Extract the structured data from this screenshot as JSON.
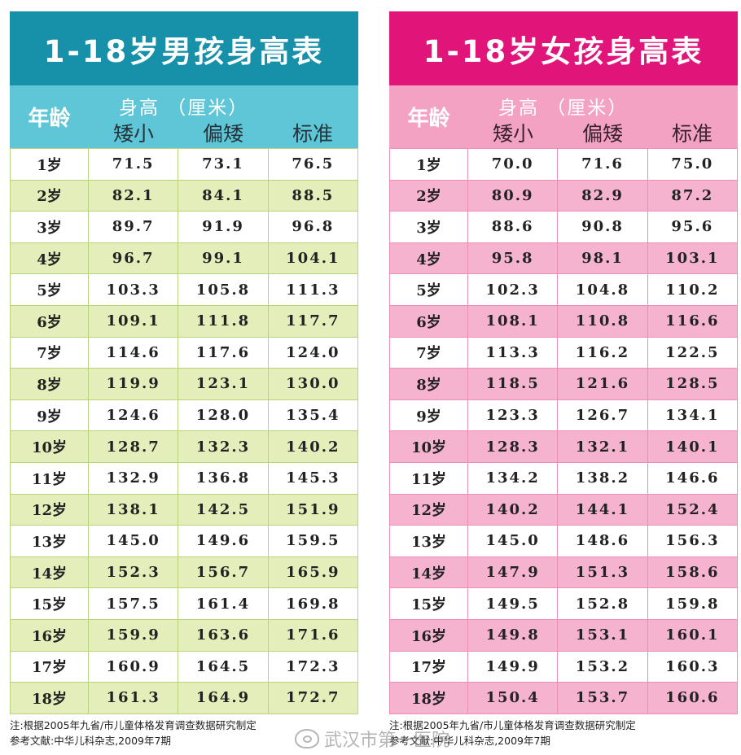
{
  "boys": {
    "title": "1-18岁男孩身高表",
    "age_header": "年龄",
    "height_header": "身高 （厘米）",
    "columns": [
      "矮小",
      "偏矮",
      "标准"
    ],
    "rows": [
      {
        "age": "1岁",
        "v": [
          "71.5",
          "73.1",
          "76.5"
        ]
      },
      {
        "age": "2岁",
        "v": [
          "82.1",
          "84.1",
          "88.5"
        ]
      },
      {
        "age": "3岁",
        "v": [
          "89.7",
          "91.9",
          "96.8"
        ]
      },
      {
        "age": "4岁",
        "v": [
          "96.7",
          "99.1",
          "104.1"
        ]
      },
      {
        "age": "5岁",
        "v": [
          "103.3",
          "105.8",
          "111.3"
        ]
      },
      {
        "age": "6岁",
        "v": [
          "109.1",
          "111.8",
          "117.7"
        ]
      },
      {
        "age": "7岁",
        "v": [
          "114.6",
          "117.6",
          "124.0"
        ]
      },
      {
        "age": "8岁",
        "v": [
          "119.9",
          "123.1",
          "130.0"
        ]
      },
      {
        "age": "9岁",
        "v": [
          "124.6",
          "128.0",
          "135.4"
        ]
      },
      {
        "age": "10岁",
        "v": [
          "128.7",
          "132.3",
          "140.2"
        ]
      },
      {
        "age": "11岁",
        "v": [
          "132.9",
          "136.8",
          "145.3"
        ]
      },
      {
        "age": "12岁",
        "v": [
          "138.1",
          "142.5",
          "151.9"
        ]
      },
      {
        "age": "13岁",
        "v": [
          "145.0",
          "149.6",
          "159.5"
        ]
      },
      {
        "age": "14岁",
        "v": [
          "152.3",
          "156.7",
          "165.9"
        ]
      },
      {
        "age": "15岁",
        "v": [
          "157.5",
          "161.4",
          "169.8"
        ]
      },
      {
        "age": "16岁",
        "v": [
          "159.9",
          "163.6",
          "171.6"
        ]
      },
      {
        "age": "17岁",
        "v": [
          "160.9",
          "164.5",
          "172.3"
        ]
      },
      {
        "age": "18岁",
        "v": [
          "161.3",
          "164.9",
          "172.7"
        ]
      }
    ],
    "note1": "注:根据2005年九省/市儿童体格发育调查数据研究制定",
    "note2": "参考文献:中华儿科杂志,2009年7期"
  },
  "girls": {
    "title": "1-18岁女孩身高表",
    "age_header": "年龄",
    "height_header": "身高 （厘米）",
    "columns": [
      "矮小",
      "偏矮",
      "标准"
    ],
    "rows": [
      {
        "age": "1岁",
        "v": [
          "70.0",
          "71.6",
          "75.0"
        ]
      },
      {
        "age": "2岁",
        "v": [
          "80.9",
          "82.9",
          "87.2"
        ]
      },
      {
        "age": "3岁",
        "v": [
          "88.6",
          "90.8",
          "95.6"
        ]
      },
      {
        "age": "4岁",
        "v": [
          "95.8",
          "98.1",
          "103.1"
        ]
      },
      {
        "age": "5岁",
        "v": [
          "102.3",
          "104.8",
          "110.2"
        ]
      },
      {
        "age": "6岁",
        "v": [
          "108.1",
          "110.8",
          "116.6"
        ]
      },
      {
        "age": "7岁",
        "v": [
          "113.3",
          "116.2",
          "122.5"
        ]
      },
      {
        "age": "8岁",
        "v": [
          "118.5",
          "121.6",
          "128.5"
        ]
      },
      {
        "age": "9岁",
        "v": [
          "123.3",
          "126.7",
          "134.1"
        ]
      },
      {
        "age": "10岁",
        "v": [
          "128.3",
          "132.1",
          "140.1"
        ]
      },
      {
        "age": "11岁",
        "v": [
          "134.2",
          "138.2",
          "146.6"
        ]
      },
      {
        "age": "12岁",
        "v": [
          "140.2",
          "144.1",
          "152.4"
        ]
      },
      {
        "age": "13岁",
        "v": [
          "145.0",
          "148.6",
          "156.3"
        ]
      },
      {
        "age": "14岁",
        "v": [
          "147.9",
          "151.3",
          "158.6"
        ]
      },
      {
        "age": "15岁",
        "v": [
          "149.5",
          "152.8",
          "159.8"
        ]
      },
      {
        "age": "16岁",
        "v": [
          "149.8",
          "153.1",
          "160.1"
        ]
      },
      {
        "age": "17岁",
        "v": [
          "149.9",
          "153.2",
          "160.3"
        ]
      },
      {
        "age": "18岁",
        "v": [
          "150.4",
          "153.7",
          "160.6"
        ]
      }
    ],
    "note1": "注:根据2005年九省/市儿童体格发育调查数据研究制定",
    "note2": "参考文献:中华儿科杂志,2009年7期"
  },
  "watermark": "武汉市第一医院",
  "colors": {
    "boys_title": "#1791aa",
    "boys_header": "#5ec6d6",
    "boys_shade": "#e3eebb",
    "girls_title": "#e01479",
    "girls_header": "#f4a2c4",
    "girls_shade": "#f6b3cf"
  }
}
